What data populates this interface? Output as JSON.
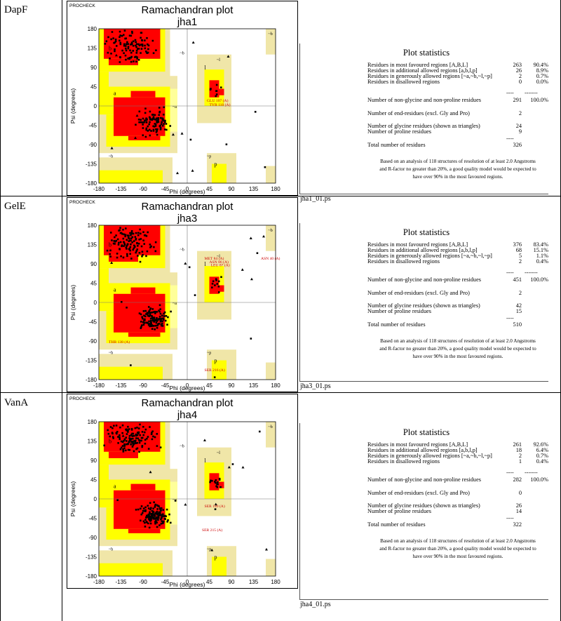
{
  "panels": [
    {
      "protein": "DapF",
      "plot": {
        "brand": "PROCHECK",
        "title": "Ramachandran plot",
        "subtitle": "jha1"
      },
      "annotations": [
        "GLU 107 (A)",
        "TYR 110 (A)"
      ],
      "stats": {
        "title": "Plot statistics",
        "rows": [
          {
            "label": "Residues in most favoured regions  [A,B,L]",
            "count": "263",
            "pct": "90.4%"
          },
          {
            "label": "Residues in additional allowed regions  [a,b,l,p]",
            "count": "26",
            "pct": "8.9%"
          },
          {
            "label": "Residues in generously allowed regions  [~a,~b,~l,~p]",
            "count": "2",
            "pct": "0.7%"
          },
          {
            "label": "Residues in disallowed regions",
            "count": "0",
            "pct": "0.0%"
          },
          {
            "label": "Number of non-glycine and non-proline residues",
            "count": "291",
            "pct": "100.0%"
          },
          {
            "label": "Number of end-residues (excl. Gly and Pro)",
            "count": "2",
            "pct": ""
          },
          {
            "label": "Number of glycine residues (shown as triangles)",
            "count": "24",
            "pct": ""
          },
          {
            "label": "Number of proline residues",
            "count": "9",
            "pct": ""
          },
          {
            "label": "Total number of residues",
            "count": "326",
            "pct": ""
          }
        ],
        "dash_a": "----",
        "dash_b": "-------",
        "note": "Based on an analysis of 118 structures of resolution of at least 2.0 Angstroms and R-factor no greater than 20%, a good quality model would be expected to have over 90% in the most favoured regions.",
        "filename": "jha1_01.ps"
      }
    },
    {
      "protein": "GelE",
      "plot": {
        "brand": "PROCHECK",
        "title": "Ramachandran plot",
        "subtitle": "jha3"
      },
      "annotations": [
        "MET 84 (A)",
        "ASN 86 (A)",
        "LEU 87 (A)",
        "ASN 40 (A)",
        "THR 138 (A)",
        "SER 216 (A)"
      ],
      "stats": {
        "title": "Plot statistics",
        "rows": [
          {
            "label": "Residues in most favoured regions  [A,B,L]",
            "count": "376",
            "pct": "83.4%"
          },
          {
            "label": "Residues in additional allowed regions  [a,b,l,p]",
            "count": "68",
            "pct": "15.1%"
          },
          {
            "label": "Residues in generously allowed regions  [~a,~b,~l,~p]",
            "count": "5",
            "pct": "1.1%"
          },
          {
            "label": "Residues in disallowed regions",
            "count": "2",
            "pct": "0.4%"
          },
          {
            "label": "Number of non-glycine and non-proline residues",
            "count": "451",
            "pct": "100.0%"
          },
          {
            "label": "Number of end-residues (excl. Gly and Pro)",
            "count": "2",
            "pct": ""
          },
          {
            "label": "Number of glycine residues (shown as triangles)",
            "count": "42",
            "pct": ""
          },
          {
            "label": "Number of proline residues",
            "count": "15",
            "pct": ""
          },
          {
            "label": "Total number of residues",
            "count": "510",
            "pct": ""
          }
        ],
        "dash_a": "----",
        "dash_b": "-------",
        "note": "Based on an analysis of 118 structures of resolution of at least 2.0 Angstroms and R-factor no greater than 20%, a good quality model would be expected to have over 90% in the most favoured regions.",
        "filename": "jha3_01.ps"
      }
    },
    {
      "protein": "VanA",
      "plot": {
        "brand": "PROCHECK",
        "title": "Ramachandran plot",
        "subtitle": "jha4"
      },
      "annotations": [
        "SER 189 (A)",
        "SER 215 (A)"
      ],
      "stats": {
        "title": "Plot statistics",
        "rows": [
          {
            "label": "Residues in most favoured regions  [A,B,L]",
            "count": "261",
            "pct": "92.6%"
          },
          {
            "label": "Residues in additional allowed regions  [a,b,l,p]",
            "count": "18",
            "pct": "6.4%"
          },
          {
            "label": "Residues in generously allowed regions  [~a,~b,~l,~p]",
            "count": "2",
            "pct": "0.7%"
          },
          {
            "label": "Residues in disallowed regions",
            "count": "1",
            "pct": "0.4%"
          },
          {
            "label": "Number of non-glycine and non-proline residues",
            "count": "282",
            "pct": "100.0%"
          },
          {
            "label": "Number of end-residues (excl. Gly and Pro)",
            "count": "0",
            "pct": ""
          },
          {
            "label": "Number of glycine residues (shown as triangles)",
            "count": "26",
            "pct": ""
          },
          {
            "label": "Number of proline residues",
            "count": "14",
            "pct": ""
          },
          {
            "label": "Total number of residues",
            "count": "322",
            "pct": ""
          }
        ],
        "dash_a": "----",
        "dash_b": "-------",
        "note": "Based on an analysis of 118 structures of resolution of at least 2.0 Angstroms and R-factor no greater than 20%, a good quality model would be expected to have over 90% in the most favoured regions.",
        "filename": "jha4_01.ps"
      }
    }
  ],
  "chart_data": {
    "type": "scatter",
    "title": "Ramachandran plot",
    "xlabel": "Phi (degrees)",
    "ylabel": "Psi (degrees)",
    "xlim": [
      -180,
      180
    ],
    "ylim": [
      -180,
      180
    ],
    "ticks": [
      -180,
      -135,
      -90,
      -45,
      0,
      45,
      90,
      135,
      180
    ],
    "region_labels": [
      "b",
      "a",
      "~b",
      "~a",
      "~l",
      "l",
      "~p",
      "p"
    ],
    "colors": {
      "core": "#ff0000",
      "allowed": "#ffff00",
      "generous": "#ffff9a",
      "outer": "#f0e6a8",
      "point": "#000000",
      "annotation": "#cc0000"
    }
  }
}
